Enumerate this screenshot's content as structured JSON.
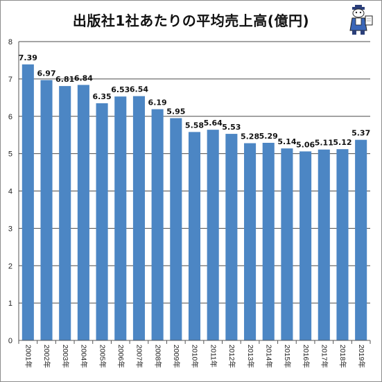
{
  "colors": {
    "bar": "#4c86c4",
    "grid": "#4a4a4a",
    "axis": "#555555",
    "background": "#ffffff"
  },
  "mascot": {
    "icon": "cartoon-reporter-mascot-icon"
  },
  "chart_data": {
    "type": "bar",
    "title": "出版社1社あたりの平均売上高(億円)",
    "xlabel": "",
    "ylabel": "",
    "ylim": [
      0,
      8
    ],
    "yticks": [
      0,
      1,
      2,
      3,
      4,
      5,
      6,
      7,
      8
    ],
    "grid": true,
    "categories": [
      "2001年",
      "2002年",
      "2003年",
      "2004年",
      "2005年",
      "2006年",
      "2007年",
      "2008年",
      "2009年",
      "2010年",
      "2011年",
      "2012年",
      "2013年",
      "2014年",
      "2015年",
      "2016年",
      "2017年",
      "2018年",
      "2019年"
    ],
    "values": [
      7.39,
      6.97,
      6.81,
      6.84,
      6.35,
      6.53,
      6.54,
      6.19,
      5.95,
      5.58,
      5.64,
      5.53,
      5.28,
      5.29,
      5.14,
      5.06,
      5.11,
      5.12,
      5.37
    ]
  }
}
